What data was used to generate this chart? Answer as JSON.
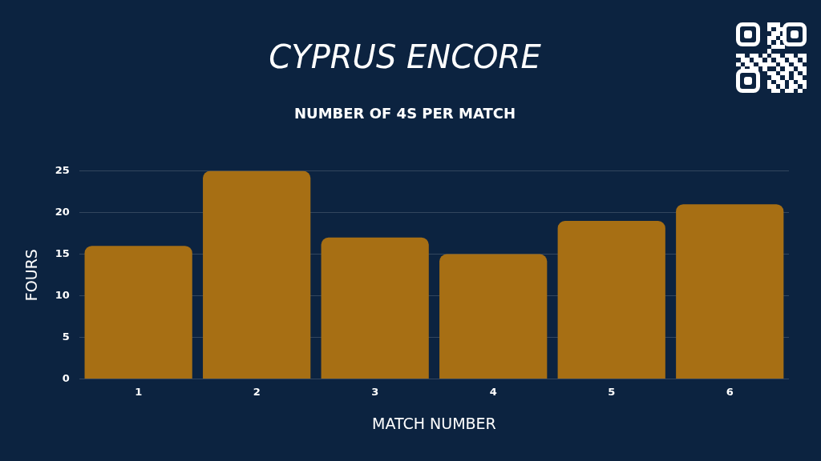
{
  "chart_data": {
    "type": "bar",
    "title": "CYPRUS ENCORE",
    "subtitle": "NUMBER OF 4S PER MATCH",
    "xlabel": "MATCH NUMBER",
    "ylabel": "FOURS",
    "categories": [
      "1",
      "2",
      "3",
      "4",
      "5",
      "6"
    ],
    "values": [
      16,
      25,
      17,
      15,
      19,
      21
    ],
    "color": "#a76f14",
    "ylim": [
      0,
      25
    ],
    "yticks": [
      0,
      5,
      10,
      15,
      20,
      25
    ],
    "grid": "y"
  }
}
